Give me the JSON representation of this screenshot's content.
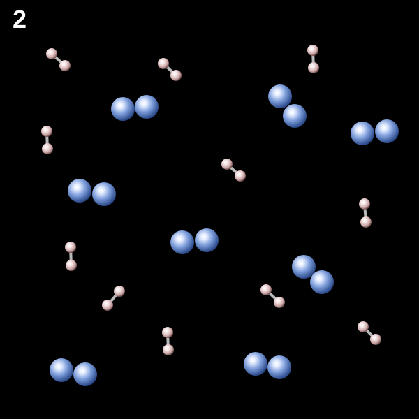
{
  "frame_label": "2",
  "colors": {
    "background": "#000000",
    "large_atom": "#7f9fdc",
    "small_atom": "#e8cccc",
    "bond": "#b8b8b8",
    "label": "#ffffff"
  },
  "molecules": [
    {
      "kind": "large-diatomic"
    },
    {
      "kind": "large-diatomic"
    },
    {
      "kind": "large-diatomic"
    },
    {
      "kind": "large-diatomic"
    },
    {
      "kind": "large-diatomic"
    },
    {
      "kind": "large-diatomic"
    },
    {
      "kind": "large-diatomic"
    },
    {
      "kind": "large-diatomic"
    },
    {
      "kind": "small-bonded-diatomic"
    },
    {
      "kind": "small-bonded-diatomic"
    },
    {
      "kind": "small-bonded-diatomic"
    },
    {
      "kind": "small-bonded-diatomic"
    },
    {
      "kind": "small-bonded-diatomic"
    },
    {
      "kind": "small-bonded-diatomic"
    },
    {
      "kind": "small-bonded-diatomic"
    },
    {
      "kind": "small-bonded-diatomic"
    },
    {
      "kind": "small-bonded-diatomic"
    },
    {
      "kind": "small-bonded-diatomic"
    },
    {
      "kind": "small-bonded-diatomic"
    }
  ]
}
